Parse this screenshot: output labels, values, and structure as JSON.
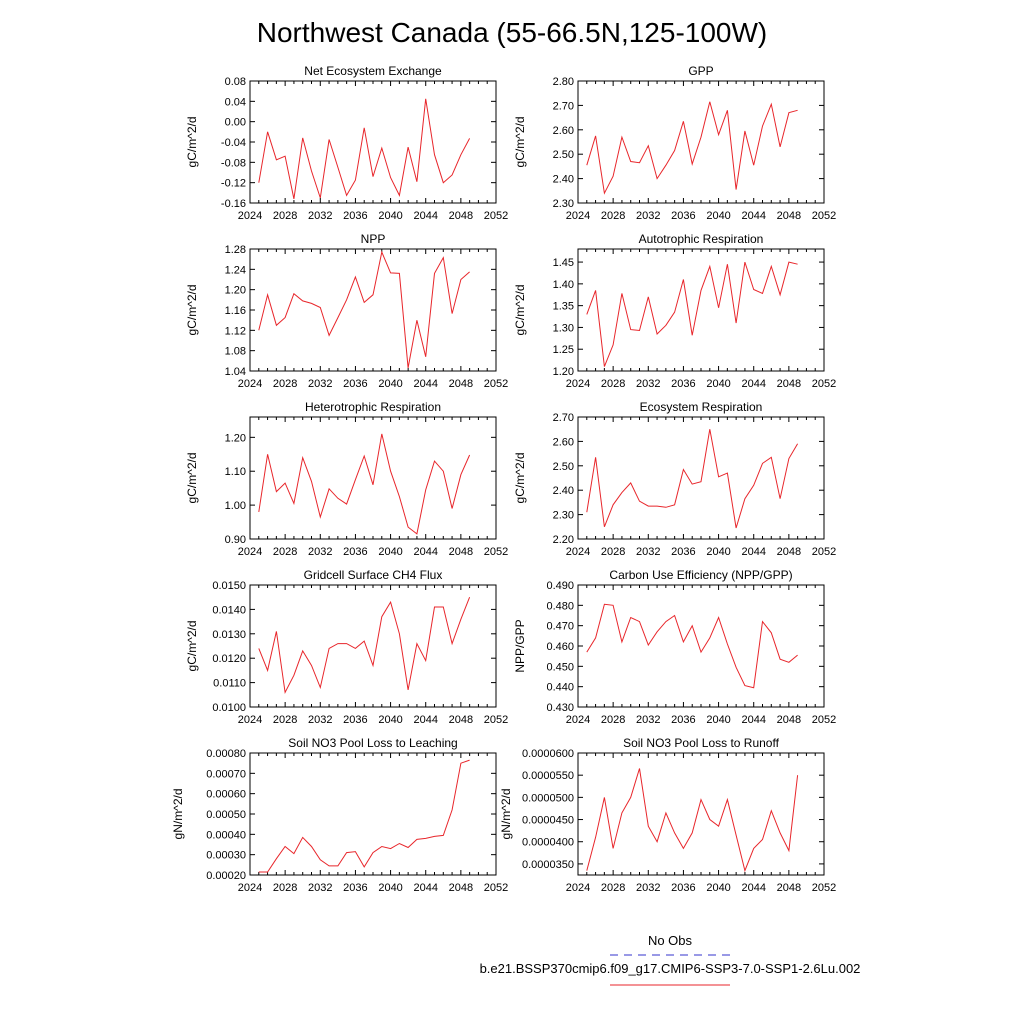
{
  "title": "Northwest Canada (55-66.5N,125-100W)",
  "x_ticks": [
    "2024",
    "2028",
    "2032",
    "2036",
    "2040",
    "2044",
    "2048",
    "2052"
  ],
  "legend": {
    "entries": [
      {
        "label": "No Obs",
        "color": "#3333cc",
        "style": "dashed"
      },
      {
        "label": "b.e21.BSSP370cmip6.f09_g17.CMIP6-SSP3-7.0-SSP1-2.6Lu.002",
        "color": "#e8262b",
        "style": "solid"
      }
    ]
  },
  "line_color": "#e8262b",
  "chart_data": [
    {
      "type": "line",
      "title": "Net Ecosystem Exchange",
      "ylabel": "gC/m^2/d",
      "xlim": [
        2024,
        2052
      ],
      "ylim": [
        -0.16,
        0.08
      ],
      "yticks": [
        "0.08",
        "0.04",
        "0.00",
        "-0.04",
        "-0.08",
        "-0.12",
        "-0.16"
      ],
      "x": [
        2025,
        2026,
        2027,
        2028,
        2029,
        2030,
        2031,
        2032,
        2033,
        2034,
        2035,
        2036,
        2037,
        2038,
        2039,
        2040,
        2041,
        2042,
        2043,
        2044,
        2045,
        2046,
        2047,
        2048,
        2049
      ],
      "values": [
        -0.12,
        -0.02,
        -0.075,
        -0.068,
        -0.152,
        -0.032,
        -0.097,
        -0.15,
        -0.035,
        -0.09,
        -0.145,
        -0.115,
        -0.012,
        -0.108,
        -0.052,
        -0.11,
        -0.145,
        -0.05,
        -0.118,
        0.045,
        -0.065,
        -0.12,
        -0.105,
        -0.065,
        -0.033
      ]
    },
    {
      "type": "line",
      "title": "GPP",
      "ylabel": "gC/m^2/d",
      "xlim": [
        2024,
        2052
      ],
      "ylim": [
        2.3,
        2.8
      ],
      "yticks": [
        "2.80",
        "2.70",
        "2.60",
        "2.50",
        "2.40",
        "2.30"
      ],
      "x": [
        2025,
        2026,
        2027,
        2028,
        2029,
        2030,
        2031,
        2032,
        2033,
        2034,
        2035,
        2036,
        2037,
        2038,
        2039,
        2040,
        2041,
        2042,
        2043,
        2044,
        2045,
        2046,
        2047,
        2048,
        2049
      ],
      "values": [
        2.455,
        2.575,
        2.34,
        2.41,
        2.57,
        2.47,
        2.465,
        2.535,
        2.4,
        2.455,
        2.515,
        2.635,
        2.46,
        2.57,
        2.715,
        2.58,
        2.68,
        2.355,
        2.595,
        2.455,
        2.615,
        2.705,
        2.53,
        2.67,
        2.68
      ]
    },
    {
      "type": "line",
      "title": "NPP",
      "ylabel": "gC/m^2/d",
      "xlim": [
        2024,
        2052
      ],
      "ylim": [
        1.04,
        1.28
      ],
      "yticks": [
        "1.28",
        "1.24",
        "1.20",
        "1.16",
        "1.12",
        "1.08",
        "1.04"
      ],
      "x": [
        2025,
        2026,
        2027,
        2028,
        2029,
        2030,
        2031,
        2032,
        2033,
        2034,
        2035,
        2036,
        2037,
        2038,
        2039,
        2040,
        2041,
        2042,
        2043,
        2044,
        2045,
        2046,
        2047,
        2048,
        2049
      ],
      "values": [
        1.12,
        1.19,
        1.13,
        1.145,
        1.192,
        1.178,
        1.173,
        1.165,
        1.11,
        1.145,
        1.18,
        1.225,
        1.175,
        1.19,
        1.274,
        1.233,
        1.232,
        1.046,
        1.14,
        1.068,
        1.232,
        1.263,
        1.153,
        1.22,
        1.235
      ]
    },
    {
      "type": "line",
      "title": "Autotrophic Respiration",
      "ylabel": "gC/m^2/d",
      "xlim": [
        2024,
        2052
      ],
      "ylim": [
        1.2,
        1.48
      ],
      "yticks": [
        "1.45",
        "1.40",
        "1.35",
        "1.30",
        "1.25",
        "1.20"
      ],
      "x": [
        2025,
        2026,
        2027,
        2028,
        2029,
        2030,
        2031,
        2032,
        2033,
        2034,
        2035,
        2036,
        2037,
        2038,
        2039,
        2040,
        2041,
        2042,
        2043,
        2044,
        2045,
        2046,
        2047,
        2048,
        2049
      ],
      "values": [
        1.33,
        1.385,
        1.21,
        1.26,
        1.378,
        1.295,
        1.293,
        1.37,
        1.285,
        1.305,
        1.335,
        1.41,
        1.282,
        1.385,
        1.44,
        1.345,
        1.445,
        1.31,
        1.45,
        1.387,
        1.378,
        1.44,
        1.375,
        1.45,
        1.445
      ]
    },
    {
      "type": "line",
      "title": "Heterotrophic Respiration",
      "ylabel": "gC/m^2/d",
      "xlim": [
        2024,
        2052
      ],
      "ylim": [
        0.9,
        1.26
      ],
      "yticks": [
        "1.20",
        "1.10",
        "1.00",
        "0.90"
      ],
      "x": [
        2025,
        2026,
        2027,
        2028,
        2029,
        2030,
        2031,
        2032,
        2033,
        2034,
        2035,
        2036,
        2037,
        2038,
        2039,
        2040,
        2041,
        2042,
        2043,
        2044,
        2045,
        2046,
        2047,
        2048,
        2049
      ],
      "values": [
        0.98,
        1.15,
        1.04,
        1.065,
        1.005,
        1.14,
        1.07,
        0.965,
        1.048,
        1.02,
        1.003,
        1.075,
        1.145,
        1.06,
        1.21,
        1.1,
        1.025,
        0.935,
        0.915,
        1.045,
        1.13,
        1.1,
        0.99,
        1.09,
        1.148
      ]
    },
    {
      "type": "line",
      "title": "Ecosystem Respiration",
      "ylabel": "gC/m^2/d",
      "xlim": [
        2024,
        2052
      ],
      "ylim": [
        2.2,
        2.7
      ],
      "yticks": [
        "2.70",
        "2.60",
        "2.50",
        "2.40",
        "2.30",
        "2.20"
      ],
      "x": [
        2025,
        2026,
        2027,
        2028,
        2029,
        2030,
        2031,
        2032,
        2033,
        2034,
        2035,
        2036,
        2037,
        2038,
        2039,
        2040,
        2041,
        2042,
        2043,
        2044,
        2045,
        2046,
        2047,
        2048,
        2049
      ],
      "values": [
        2.31,
        2.535,
        2.25,
        2.34,
        2.39,
        2.43,
        2.355,
        2.335,
        2.335,
        2.33,
        2.34,
        2.485,
        2.425,
        2.435,
        2.65,
        2.455,
        2.47,
        2.245,
        2.365,
        2.42,
        2.51,
        2.535,
        2.365,
        2.53,
        2.59
      ]
    },
    {
      "type": "line",
      "title": "Gridcell Surface CH4 Flux",
      "ylabel": "gC/m^2/d",
      "xlim": [
        2024,
        2052
      ],
      "ylim": [
        0.01,
        0.015
      ],
      "yticks": [
        "0.0150",
        "0.0140",
        "0.0130",
        "0.0120",
        "0.0110",
        "0.0100"
      ],
      "x": [
        2025,
        2026,
        2027,
        2028,
        2029,
        2030,
        2031,
        2032,
        2033,
        2034,
        2035,
        2036,
        2037,
        2038,
        2039,
        2040,
        2041,
        2042,
        2043,
        2044,
        2045,
        2046,
        2047,
        2048,
        2049
      ],
      "values": [
        0.0124,
        0.0115,
        0.0131,
        0.0106,
        0.0113,
        0.0123,
        0.0117,
        0.0108,
        0.0124,
        0.0126,
        0.0126,
        0.0124,
        0.0127,
        0.0117,
        0.0137,
        0.0143,
        0.013,
        0.0107,
        0.0126,
        0.0119,
        0.0141,
        0.0141,
        0.0126,
        0.0136,
        0.0145
      ]
    },
    {
      "type": "line",
      "title": "Carbon Use Efficiency (NPP/GPP)",
      "ylabel": "NPP/GPP",
      "xlim": [
        2024,
        2052
      ],
      "ylim": [
        0.43,
        0.49
      ],
      "yticks": [
        "0.490",
        "0.480",
        "0.470",
        "0.460",
        "0.450",
        "0.440",
        "0.430"
      ],
      "x": [
        2025,
        2026,
        2027,
        2028,
        2029,
        2030,
        2031,
        2032,
        2033,
        2034,
        2035,
        2036,
        2037,
        2038,
        2039,
        2040,
        2041,
        2042,
        2043,
        2044,
        2045,
        2046,
        2047,
        2048,
        2049
      ],
      "values": [
        0.457,
        0.464,
        0.4805,
        0.48,
        0.462,
        0.474,
        0.472,
        0.4605,
        0.467,
        0.472,
        0.475,
        0.462,
        0.47,
        0.457,
        0.464,
        0.474,
        0.461,
        0.4495,
        0.4405,
        0.4395,
        0.472,
        0.4665,
        0.4535,
        0.452,
        0.4555
      ]
    },
    {
      "type": "line",
      "title": "Soil NO3 Pool Loss to Leaching",
      "ylabel": "gN/m^2/d",
      "xlim": [
        2024,
        2052
      ],
      "ylim": [
        0.0002,
        0.0008
      ],
      "yticks": [
        "0.00080",
        "0.00070",
        "0.00060",
        "0.00050",
        "0.00040",
        "0.00030",
        "0.00020"
      ],
      "x": [
        2025,
        2026,
        2027,
        2028,
        2029,
        2030,
        2031,
        2032,
        2033,
        2034,
        2035,
        2036,
        2037,
        2038,
        2039,
        2040,
        2041,
        2042,
        2043,
        2044,
        2045,
        2046,
        2047,
        2048,
        2049
      ],
      "values": [
        0.000215,
        0.000215,
        0.00028,
        0.00034,
        0.000305,
        0.000385,
        0.00034,
        0.000275,
        0.000245,
        0.000245,
        0.00031,
        0.000315,
        0.00024,
        0.00031,
        0.00034,
        0.00033,
        0.000355,
        0.000335,
        0.000375,
        0.00038,
        0.00039,
        0.000395,
        0.00052,
        0.00075,
        0.000765
      ]
    },
    {
      "type": "line",
      "title": "Soil NO3 Pool Loss to Runoff",
      "ylabel": "gN/m^2/d",
      "xlim": [
        2024,
        2052
      ],
      "ylim": [
        3.25e-05,
        6e-05
      ],
      "yticks": [
        "0.0000600",
        "0.0000550",
        "0.0000500",
        "0.0000450",
        "0.0000400",
        "0.0000350"
      ],
      "x": [
        2025,
        2026,
        2027,
        2028,
        2029,
        2030,
        2031,
        2032,
        2033,
        2034,
        2035,
        2036,
        2037,
        2038,
        2039,
        2040,
        2041,
        2042,
        2043,
        2044,
        2045,
        2046,
        2047,
        2048,
        2049
      ],
      "values": [
        3.35e-05,
        4.1e-05,
        5e-05,
        3.85e-05,
        4.65e-05,
        5e-05,
        5.65e-05,
        4.35e-05,
        4e-05,
        4.65e-05,
        4.2e-05,
        3.85e-05,
        4.2e-05,
        4.95e-05,
        4.5e-05,
        4.35e-05,
        4.95e-05,
        4.15e-05,
        3.35e-05,
        3.85e-05,
        4.05e-05,
        4.7e-05,
        4.2e-05,
        3.8e-05,
        5.5e-05
      ]
    }
  ]
}
